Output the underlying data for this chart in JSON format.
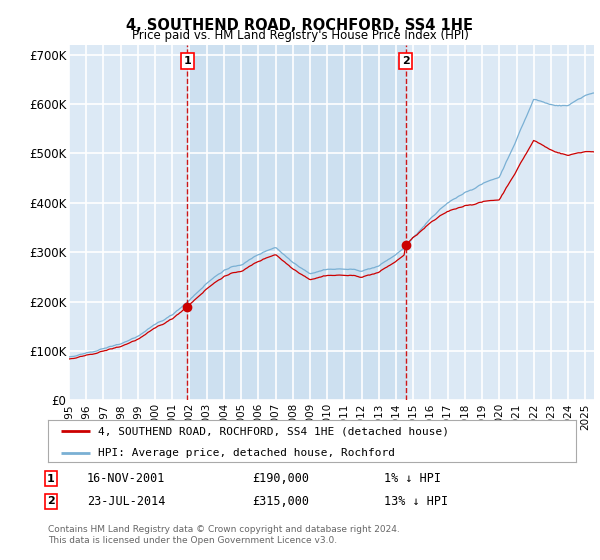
{
  "title": "4, SOUTHEND ROAD, ROCHFORD, SS4 1HE",
  "subtitle": "Price paid vs. HM Land Registry's House Price Index (HPI)",
  "xlim": [
    1995.0,
    2025.5
  ],
  "ylim": [
    0,
    720000
  ],
  "yticks": [
    0,
    100000,
    200000,
    300000,
    400000,
    500000,
    600000,
    700000
  ],
  "ytick_labels": [
    "£0",
    "£100K",
    "£200K",
    "£300K",
    "£400K",
    "£500K",
    "£600K",
    "£700K"
  ],
  "xticks": [
    1995,
    1996,
    1997,
    1998,
    1999,
    2000,
    2001,
    2002,
    2003,
    2004,
    2005,
    2006,
    2007,
    2008,
    2009,
    2010,
    2011,
    2012,
    2013,
    2014,
    2015,
    2016,
    2017,
    2018,
    2019,
    2020,
    2021,
    2022,
    2023,
    2024,
    2025
  ],
  "sale1_x": 2001.88,
  "sale1_y": 190000,
  "sale2_x": 2014.55,
  "sale2_y": 315000,
  "sale1_label": "1",
  "sale2_label": "2",
  "sale1_date": "16-NOV-2001",
  "sale1_price": "£190,000",
  "sale1_hpi": "1% ↓ HPI",
  "sale2_date": "23-JUL-2014",
  "sale2_price": "£315,000",
  "sale2_hpi": "13% ↓ HPI",
  "line1_label": "4, SOUTHEND ROAD, ROCHFORD, SS4 1HE (detached house)",
  "line2_label": "HPI: Average price, detached house, Rochford",
  "footer": "Contains HM Land Registry data © Crown copyright and database right 2024.\nThis data is licensed under the Open Government Licence v3.0.",
  "plot_bg": "#dce9f5",
  "highlight_bg": "#cde0f0",
  "grid_color": "white",
  "line1_color": "#cc0000",
  "line2_color": "#7ab0d4",
  "vline_color": "#cc0000"
}
